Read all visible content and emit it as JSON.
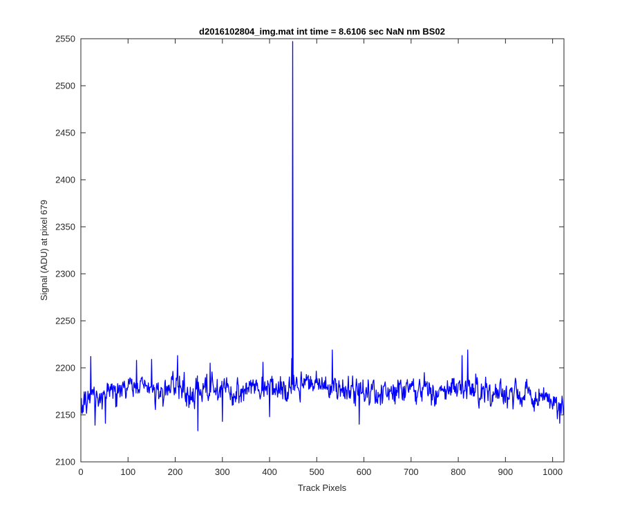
{
  "chart_data": {
    "type": "line",
    "title": "d2016102804_img.mat int time = 8.6106 sec  NaN nm BS02",
    "xlabel": "Track Pixels",
    "ylabel": "Signal (ADU) at pixel 679",
    "xlim": [
      0,
      1024
    ],
    "ylim": [
      2100,
      2550
    ],
    "xticks": [
      0,
      100,
      200,
      300,
      400,
      500,
      600,
      700,
      800,
      900,
      1000
    ],
    "yticks": [
      2100,
      2150,
      2200,
      2250,
      2300,
      2350,
      2400,
      2450,
      2500,
      2550
    ],
    "grid": false,
    "legend": "none",
    "series_color": "#0000ff",
    "series": [
      {
        "x_start": 1,
        "x_step": 1,
        "n": 1024,
        "baseline": [
          [
            1,
            2165
          ],
          [
            50,
            2171
          ],
          [
            100,
            2176
          ],
          [
            150,
            2176
          ],
          [
            200,
            2177
          ],
          [
            250,
            2176
          ],
          [
            300,
            2176
          ],
          [
            350,
            2176
          ],
          [
            400,
            2180
          ],
          [
            450,
            2180
          ],
          [
            500,
            2180
          ],
          [
            550,
            2178
          ],
          [
            600,
            2175
          ],
          [
            650,
            2176
          ],
          [
            700,
            2176
          ],
          [
            750,
            2176
          ],
          [
            800,
            2179
          ],
          [
            850,
            2176
          ],
          [
            900,
            2172
          ],
          [
            950,
            2170
          ],
          [
            1000,
            2167
          ],
          [
            1024,
            2156
          ]
        ],
        "noise_amplitude": 12,
        "features": [
          {
            "x": 21,
            "y": 2212
          },
          {
            "x": 30,
            "y": 2139
          },
          {
            "x": 52,
            "y": 2141
          },
          {
            "x": 118,
            "y": 2208
          },
          {
            "x": 150,
            "y": 2209
          },
          {
            "x": 205,
            "y": 2213
          },
          {
            "x": 248,
            "y": 2133
          },
          {
            "x": 274,
            "y": 2205
          },
          {
            "x": 300,
            "y": 2143
          },
          {
            "x": 386,
            "y": 2206
          },
          {
            "x": 400,
            "y": 2148
          },
          {
            "x": 447,
            "y": 2210
          },
          {
            "x": 449,
            "y": 2547
          },
          {
            "x": 533,
            "y": 2219
          },
          {
            "x": 590,
            "y": 2140
          },
          {
            "x": 808,
            "y": 2213
          },
          {
            "x": 820,
            "y": 2219
          },
          {
            "x": 1015,
            "y": 2141
          }
        ]
      }
    ]
  }
}
